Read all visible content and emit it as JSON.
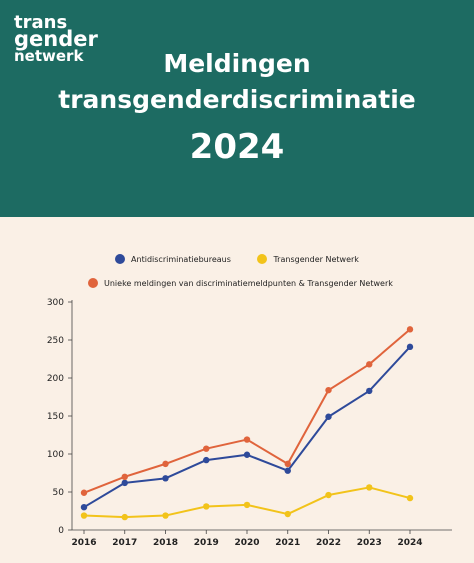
{
  "logo": {
    "line1": "trans",
    "line2": "gender",
    "line3": "netwerk"
  },
  "header": {
    "title_line1": "Meldingen",
    "title_line2": "transgenderdiscriminatie",
    "year": "2024"
  },
  "colors": {
    "header_bg": "#1d6b62",
    "page_bg": "#faf0e6",
    "blue": "#2e4a9a",
    "yellow": "#f2c31a",
    "orange": "#e0643c"
  },
  "chart_data": {
    "type": "line",
    "title": "",
    "xlabel": "",
    "ylabel": "",
    "x": [
      "2016",
      "2017",
      "2018",
      "2019",
      "2020",
      "2021",
      "2022",
      "2023",
      "2024"
    ],
    "ylim": [
      0,
      300
    ],
    "yticks": [
      0,
      50,
      100,
      150,
      200,
      250,
      300
    ],
    "grid": false,
    "legend_placement": "top",
    "series": [
      {
        "name": "Antidiscriminatiebureaus",
        "color": "#2e4a9a",
        "values": [
          30,
          62,
          68,
          92,
          99,
          78,
          149,
          183,
          241
        ]
      },
      {
        "name": "Transgender Netwerk",
        "color": "#f2c31a",
        "values": [
          19,
          17,
          19,
          31,
          33,
          21,
          46,
          56,
          42
        ]
      },
      {
        "name": "Unieke meldingen van discriminatiemeldpunten & Transgender Netwerk",
        "color": "#e0643c",
        "values": [
          49,
          70,
          87,
          107,
          119,
          87,
          184,
          218,
          264
        ]
      }
    ]
  }
}
